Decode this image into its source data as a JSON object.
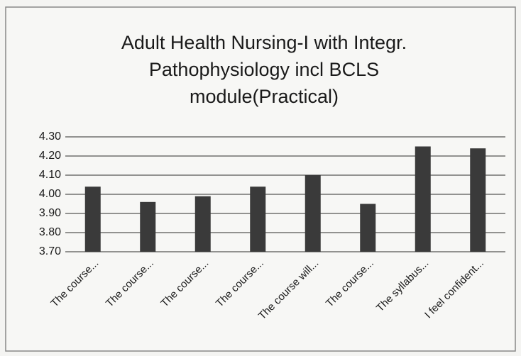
{
  "chart_data": {
    "type": "bar",
    "title": [
      "Adult Health Nursing-I with Integr.",
      "Pathophysiology incl BCLS",
      "module(Practical)"
    ],
    "categories": [
      "The course...",
      "The course...",
      "The course...",
      "The course...",
      "The course will...",
      "The course...",
      "The syllabus...",
      "I feel confident..."
    ],
    "values": [
      4.04,
      3.96,
      3.99,
      4.04,
      4.1,
      3.95,
      4.25,
      4.24
    ],
    "color": "#3a3a3a",
    "ylim": [
      3.7,
      4.3
    ],
    "yticks": [
      {
        "value": 3.7,
        "label": "3.70"
      },
      {
        "value": 3.8,
        "label": "3.80"
      },
      {
        "value": 3.9,
        "label": "3.90"
      },
      {
        "value": 4.0,
        "label": "4.00"
      },
      {
        "value": 4.1,
        "label": "4.10"
      },
      {
        "value": 4.2,
        "label": "4.20"
      },
      {
        "value": 4.3,
        "label": "4.30"
      }
    ],
    "grid": true
  }
}
